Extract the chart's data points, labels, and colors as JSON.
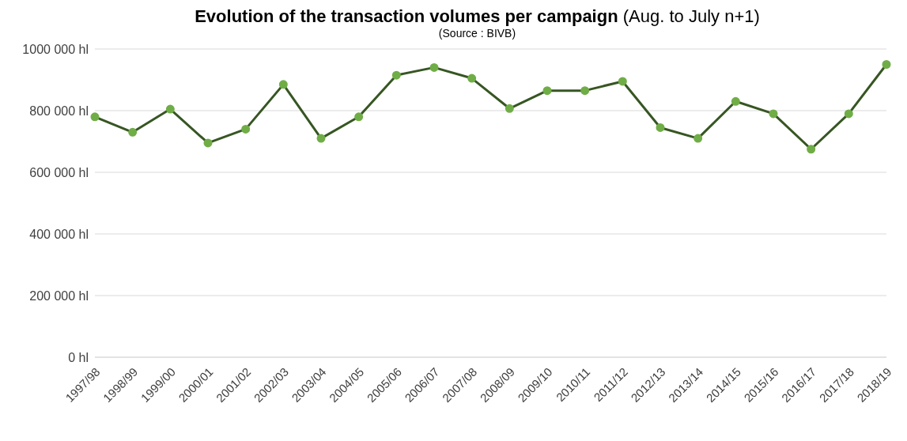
{
  "chart_data": {
    "type": "line",
    "title": "Evolution of the transaction volumes per campaign",
    "subtitle": "(Aug. to July n+1)",
    "annotations": [
      "(Source : BIVB)"
    ],
    "categories": [
      "1997/98",
      "1998/99",
      "1999/00",
      "2000/01",
      "2001/02",
      "2002/03",
      "2003/04",
      "2004/05",
      "2005/06",
      "2006/07",
      "2007/08",
      "2008/09",
      "2009/10",
      "2010/11",
      "2011/12",
      "2012/13",
      "2013/14",
      "2014/15",
      "2015/16",
      "2016/17",
      "2017/18",
      "2018/19"
    ],
    "series": [
      {
        "color": "#375623",
        "values": [
          780000,
          730000,
          805000,
          695000,
          740000,
          885000,
          710000,
          780000,
          915000,
          940000,
          905000,
          807000,
          865000,
          865000,
          895000,
          745000,
          710000,
          830000,
          790000,
          675000,
          790000,
          950000
        ]
      }
    ],
    "ylim": [
      0,
      1000000
    ],
    "yticks": [
      {
        "value": 0,
        "label": "0 hl"
      },
      {
        "value": 200000,
        "label": "200 000 hl"
      },
      {
        "value": 400000,
        "label": "400 000 hl"
      },
      {
        "value": 600000,
        "label": "600 000 hl"
      },
      {
        "value": 800000,
        "label": "800 000 hl"
      },
      {
        "value": 1000000,
        "label": "1000 000 hl"
      }
    ],
    "grid": "y",
    "marker": "circle",
    "line_style": "solid",
    "legend": false
  }
}
